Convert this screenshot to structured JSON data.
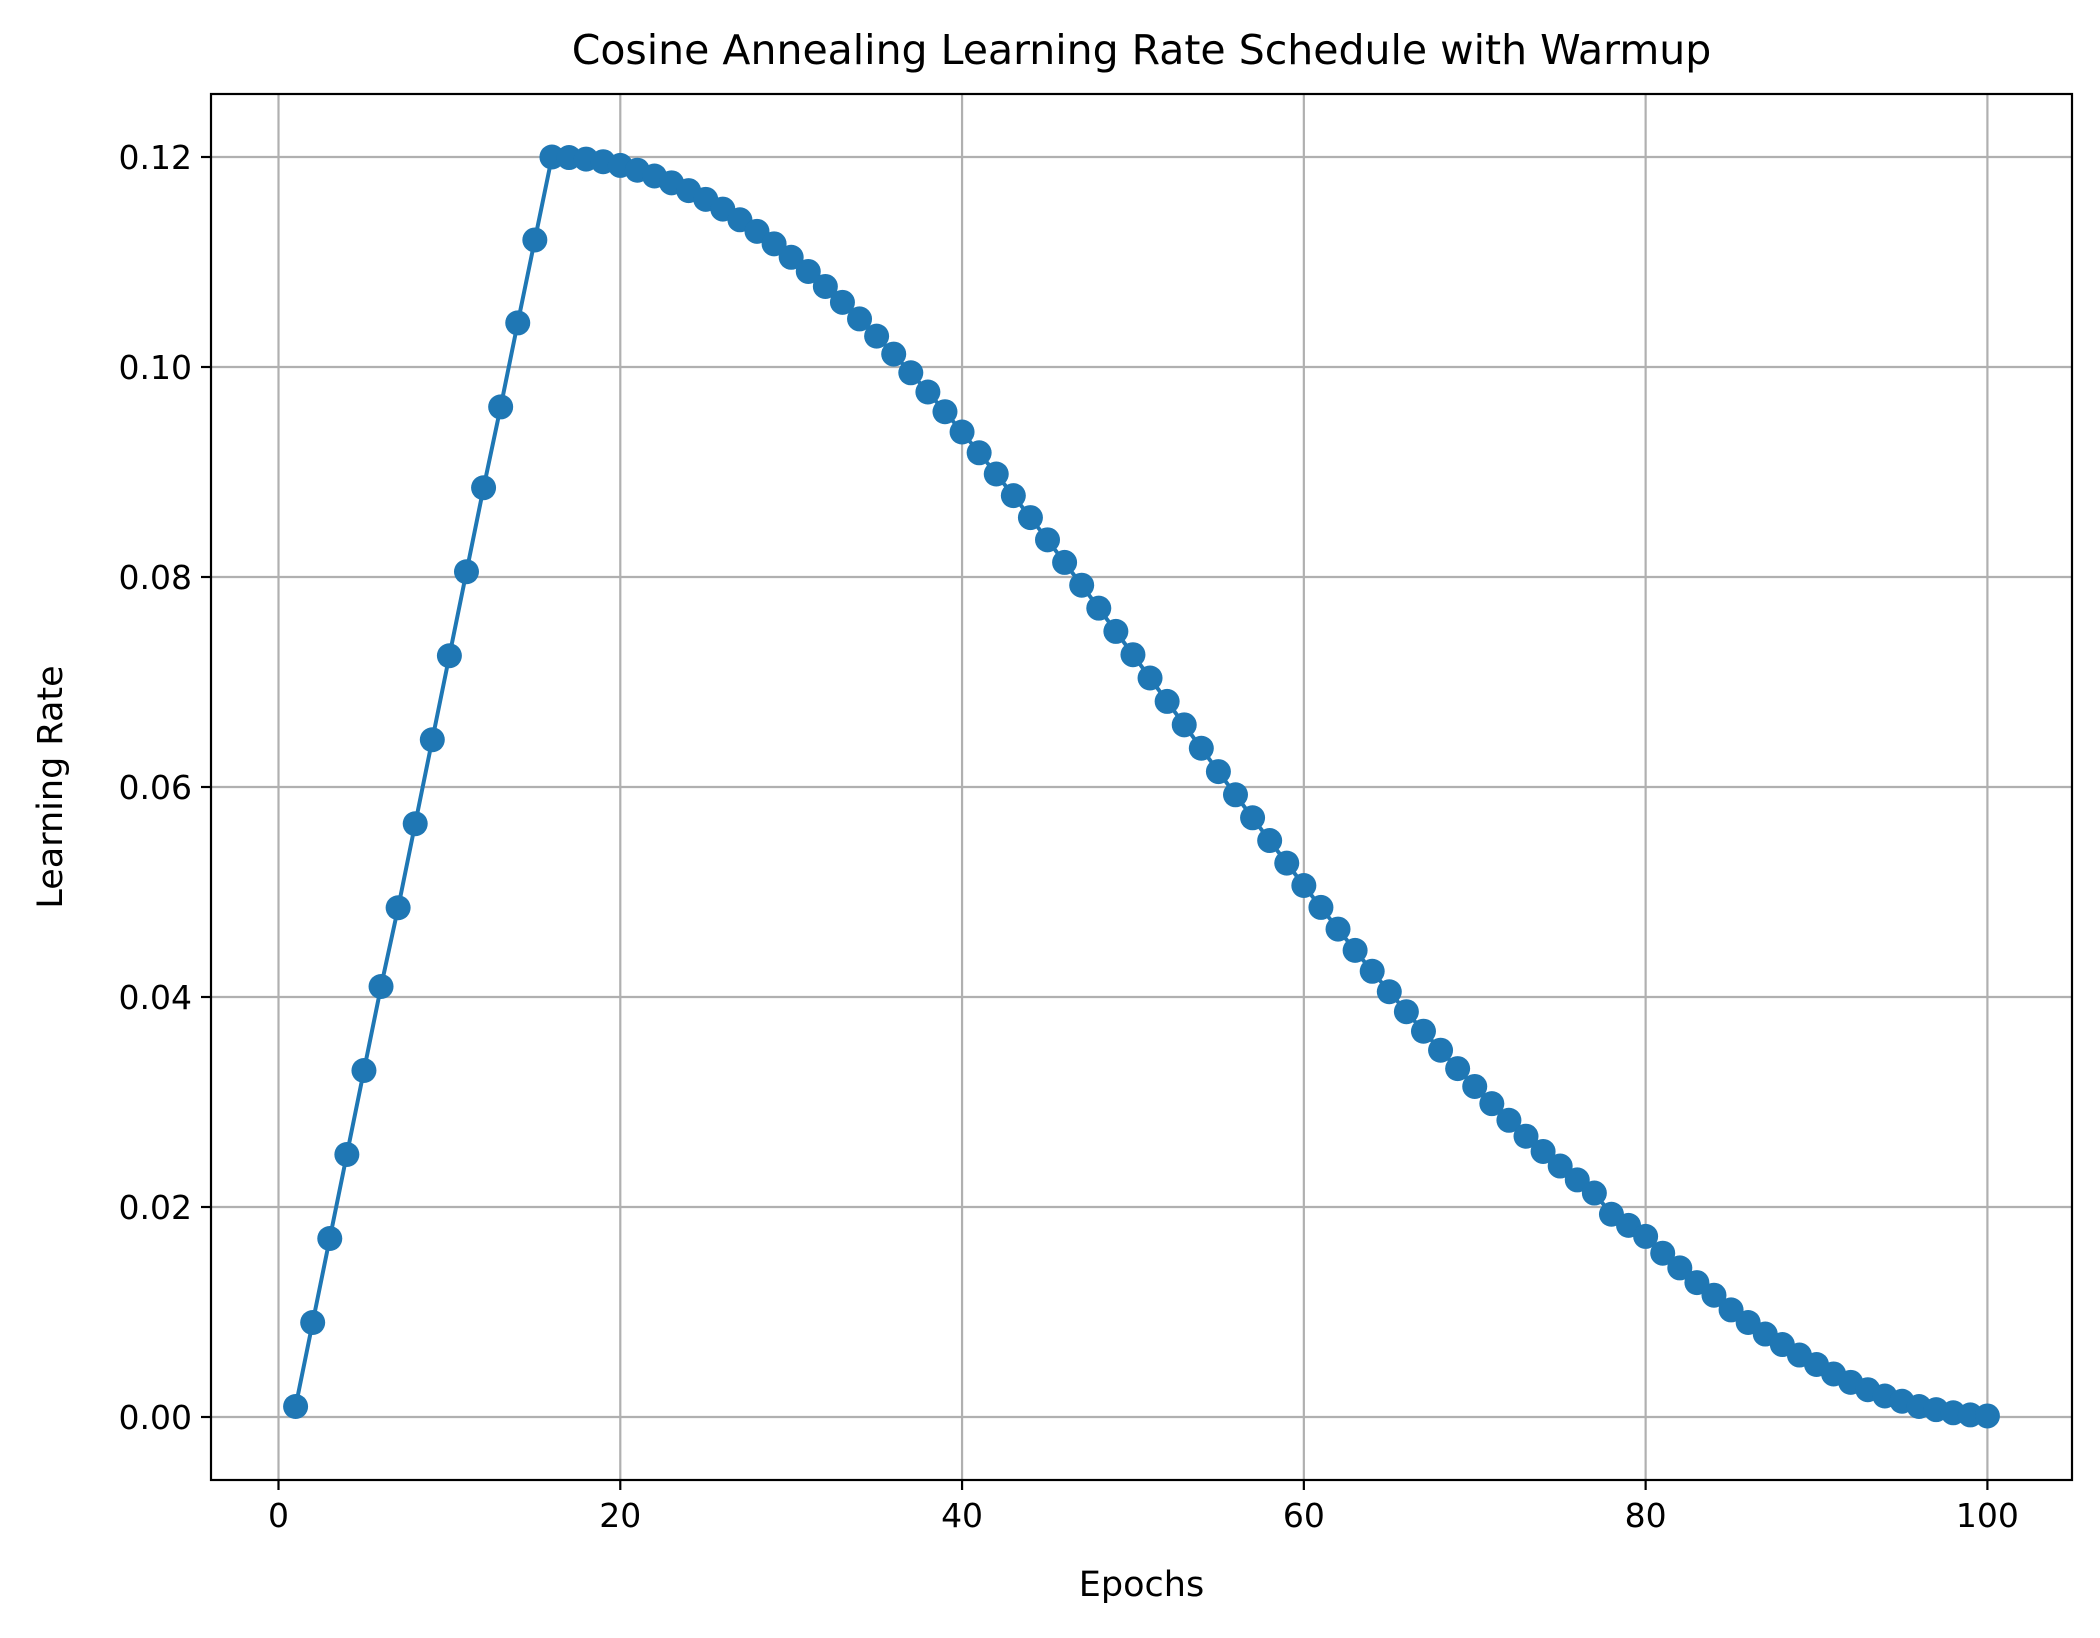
{
  "chart_data": {
    "type": "line",
    "title": "Cosine Annealing Learning Rate Schedule with Warmup",
    "xlabel": "Epochs",
    "ylabel": "Learning Rate",
    "xlim": [
      -3.95,
      104.95
    ],
    "ylim": [
      -0.006,
      0.126
    ],
    "x_ticks": [
      0,
      20,
      40,
      60,
      80,
      100
    ],
    "x_tick_labels": [
      "0",
      "20",
      "40",
      "60",
      "80",
      "100"
    ],
    "y_ticks": [
      0.0,
      0.02,
      0.04,
      0.06,
      0.08,
      0.1,
      0.12
    ],
    "y_tick_labels": [
      "0.00",
      "0.02",
      "0.04",
      "0.06",
      "0.08",
      "0.10",
      "0.12"
    ],
    "grid": true,
    "legend": false,
    "marker": "circle",
    "series": [
      {
        "color": "#1f77b4",
        "x": [
          1,
          2,
          3,
          4,
          5,
          6,
          7,
          8,
          9,
          10,
          11,
          12,
          13,
          14,
          15,
          16,
          17,
          18,
          19,
          20,
          21,
          22,
          23,
          24,
          25,
          26,
          27,
          28,
          29,
          30,
          31,
          32,
          33,
          34,
          35,
          36,
          37,
          38,
          39,
          40,
          41,
          42,
          43,
          44,
          45,
          46,
          47,
          48,
          49,
          50,
          51,
          52,
          53,
          54,
          55,
          56,
          57,
          58,
          59,
          60,
          61,
          62,
          63,
          64,
          65,
          66,
          67,
          68,
          69,
          70,
          71,
          72,
          73,
          74,
          75,
          76,
          77,
          78,
          79,
          80,
          81,
          82,
          83,
          84,
          85,
          86,
          87,
          88,
          89,
          90,
          91,
          92,
          93,
          94,
          95,
          96,
          97,
          98,
          99,
          100
        ],
        "values": [
          0.001,
          0.009,
          0.017,
          0.025,
          0.033,
          0.041,
          0.0485,
          0.0565,
          0.0645,
          0.0725,
          0.0805,
          0.0885,
          0.0962,
          0.1042,
          0.1121,
          0.12,
          0.11995,
          0.1198,
          0.11955,
          0.1192,
          0.11874,
          0.11819,
          0.11754,
          0.1168,
          0.11597,
          0.11504,
          0.11402,
          0.11292,
          0.11173,
          0.11045,
          0.1091,
          0.10767,
          0.10616,
          0.10458,
          0.10294,
          0.10123,
          0.09945,
          0.09762,
          0.09574,
          0.09381,
          0.09183,
          0.08981,
          0.08775,
          0.08566,
          0.08354,
          0.08139,
          0.07922,
          0.07703,
          0.07482,
          0.0726,
          0.07038,
          0.06815,
          0.06592,
          0.06369,
          0.06147,
          0.05926,
          0.05707,
          0.0549,
          0.05275,
          0.05062,
          0.04853,
          0.04647,
          0.04444,
          0.04245,
          0.0405,
          0.0386,
          0.03674,
          0.03493,
          0.03318,
          0.03148,
          0.02984,
          0.02826,
          0.02674,
          0.02529,
          0.0239,
          0.02258,
          0.02133,
          0.01931,
          0.01825,
          0.0172,
          0.0156,
          0.0142,
          0.0128,
          0.0116,
          0.0102,
          0.009,
          0.0079,
          0.0069,
          0.0059,
          0.005,
          0.0041,
          0.0033,
          0.0026,
          0.002,
          0.0015,
          0.001,
          0.0007,
          0.0004,
          0.0002,
          0.0001
        ]
      }
    ]
  }
}
